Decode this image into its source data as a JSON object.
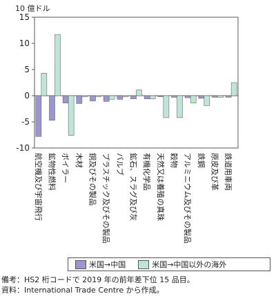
{
  "chart_data": {
    "type": "bar",
    "unit_label": "10 億ドル",
    "ylim": [
      -10,
      15
    ],
    "yticks": [
      15,
      10,
      5,
      0,
      -5,
      -10
    ],
    "categories": [
      "航空機及び宇宙飛行",
      "鉱物性燃料",
      "ボイラー",
      "木材",
      "銅及びその製品",
      "プラスチック及びその製品",
      "バルブ",
      "鉱石、スラグ及び灰",
      "有機化学品",
      "天然又は養殖の真珠",
      "穀物",
      "アルミニウム及びその製品",
      "鉄鋼",
      "原皮及び革",
      "鉄道用車両"
    ],
    "series": [
      {
        "name": "米国→中国",
        "color": "#9b96cf",
        "values": [
          -7.8,
          -4.7,
          -1.4,
          -1.5,
          -1.0,
          -1.1,
          -0.7,
          -0.6,
          -0.6,
          -0.2,
          -0.3,
          -0.4,
          -0.5,
          -0.3,
          -0.3
        ]
      },
      {
        "name": "米国→中国以外の海外",
        "color": "#bfe5d8",
        "values": [
          4.3,
          11.7,
          -7.6,
          -0.2,
          -0.2,
          -0.7,
          -0.2,
          1.1,
          -0.6,
          -4.2,
          -4.2,
          -1.4,
          -1.9,
          -0.3,
          2.5
        ]
      }
    ],
    "grid": false,
    "legend_position": "bottom"
  },
  "notes": {
    "line1": "備考：HS2 桁コードで 2019 年の前年差下位 15 品目。",
    "line2": "資料：International Trade Centre から作成。"
  }
}
